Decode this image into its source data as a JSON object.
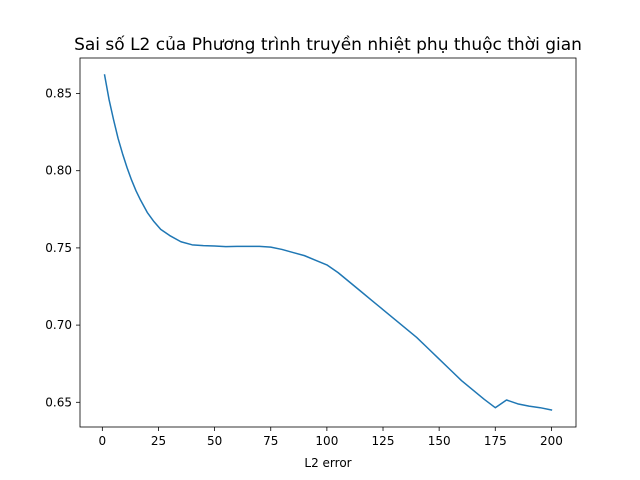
{
  "chart_data": {
    "type": "line",
    "title": "Sai số L2 của Phương trình truyền nhiệt phụ thuộc thời gian",
    "xlabel": "L2 error",
    "ylabel": "",
    "xlim": [
      -9.95,
      210.95
    ],
    "ylim": [
      0.634,
      0.873
    ],
    "grid": false,
    "x_ticks": [
      0,
      25,
      50,
      75,
      100,
      125,
      150,
      175,
      200
    ],
    "x_tick_labels": [
      "0",
      "25",
      "50",
      "75",
      "100",
      "125",
      "150",
      "175",
      "200"
    ],
    "y_ticks": [
      0.65,
      0.7,
      0.75,
      0.8,
      0.85
    ],
    "y_tick_labels": [
      "0.65",
      "0.70",
      "0.75",
      "0.80",
      "0.85"
    ],
    "series": [
      {
        "color": "#1f77b4",
        "x": [
          1,
          3,
          5,
          7,
          9,
          11,
          13,
          15,
          17,
          20,
          23,
          26,
          30,
          35,
          40,
          45,
          50,
          55,
          60,
          65,
          70,
          75,
          80,
          85,
          90,
          95,
          100,
          105,
          110,
          115,
          120,
          125,
          130,
          135,
          140,
          145,
          150,
          155,
          160,
          165,
          170,
          175,
          180,
          185,
          190,
          195,
          200
        ],
        "y": [
          0.862,
          0.846,
          0.833,
          0.821,
          0.811,
          0.802,
          0.794,
          0.787,
          0.781,
          0.773,
          0.767,
          0.762,
          0.758,
          0.754,
          0.752,
          0.7515,
          0.7512,
          0.7508,
          0.751,
          0.751,
          0.751,
          0.7505,
          0.749,
          0.747,
          0.745,
          0.742,
          0.739,
          0.734,
          0.728,
          0.722,
          0.716,
          0.71,
          0.704,
          0.698,
          0.692,
          0.685,
          0.678,
          0.671,
          0.664,
          0.658,
          0.652,
          0.6465,
          0.6515,
          0.649,
          0.6475,
          0.6465,
          0.645
        ]
      }
    ]
  }
}
